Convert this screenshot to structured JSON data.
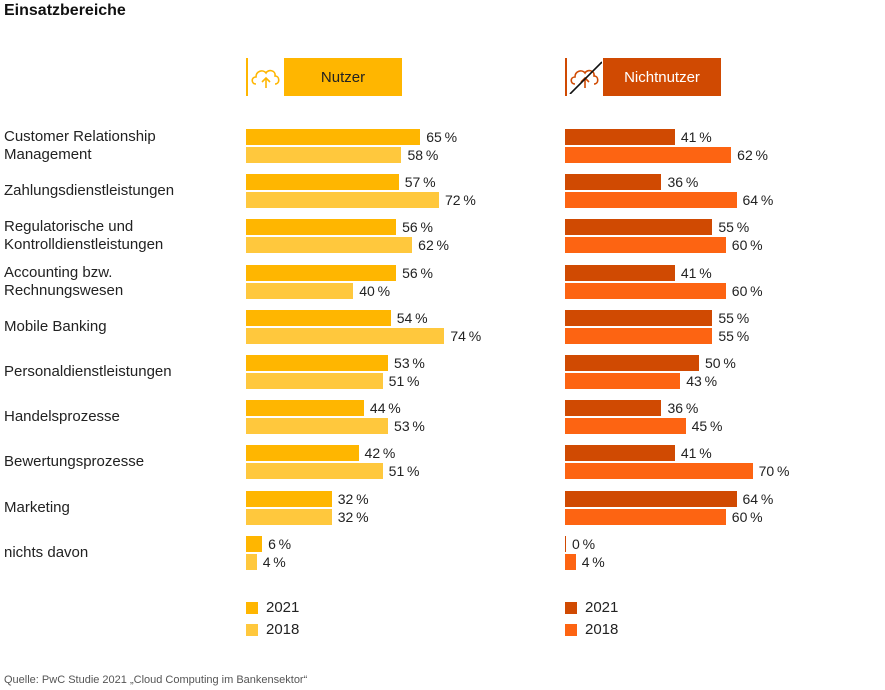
{
  "header": {
    "title": "Einsatzbereiche"
  },
  "panels": {
    "users": {
      "label": "Nutzer",
      "icon": "cloud-upload-icon"
    },
    "non_users": {
      "label": "Nichtnutzer",
      "icon": "cloud-upload-crossed-icon"
    }
  },
  "colors": {
    "users_2021": "#ffb600",
    "users_2018": "#ffc83d",
    "non_2021": "#d04a02",
    "non_2018": "#fd6412"
  },
  "legend": {
    "users": [
      "2021",
      "2018"
    ],
    "non_users": [
      "2021",
      "2018"
    ]
  },
  "chart_data": {
    "type": "bar",
    "orientation": "horizontal",
    "title": "Einsatzbereiche",
    "unit": "%",
    "xlim": [
      0,
      100
    ],
    "categories": [
      [
        "Customer Relationship",
        "Management"
      ],
      [
        "Zahlungsdienstleistungen"
      ],
      [
        "Regulatorische und",
        "Kontrolldienstleistungen"
      ],
      [
        "Accounting bzw.",
        "Rechnungswesen"
      ],
      [
        "Mobile Banking"
      ],
      [
        "Personaldienstleistungen"
      ],
      [
        "Handelsprozesse"
      ],
      [
        "Bewertungsprozesse"
      ],
      [
        "Marketing"
      ],
      [
        "nichts davon"
      ]
    ],
    "panels": [
      {
        "name": "Nutzer",
        "series": [
          {
            "name": "2021",
            "values": [
              65,
              57,
              56,
              56,
              54,
              53,
              44,
              42,
              32,
              6
            ]
          },
          {
            "name": "2018",
            "values": [
              58,
              72,
              62,
              40,
              74,
              51,
              53,
              51,
              32,
              4
            ]
          }
        ]
      },
      {
        "name": "Nichtnutzer",
        "series": [
          {
            "name": "2021",
            "values": [
              41,
              36,
              55,
              41,
              55,
              50,
              36,
              41,
              64,
              0
            ]
          },
          {
            "name": "2018",
            "values": [
              62,
              64,
              60,
              60,
              55,
              43,
              45,
              70,
              60,
              4
            ]
          }
        ]
      }
    ]
  },
  "source": "Quelle: PwC Studie 2021 „Cloud Computing im Bankensektor“"
}
